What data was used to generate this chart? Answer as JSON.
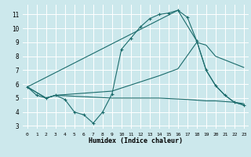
{
  "xlabel": "Humidex (Indice chaleur)",
  "bg_color": "#cce8ec",
  "grid_color": "#ffffff",
  "line_color": "#1a6b6b",
  "xlim": [
    -0.5,
    23.5
  ],
  "ylim": [
    2.8,
    11.7
  ],
  "yticks": [
    3,
    4,
    5,
    6,
    7,
    8,
    9,
    10,
    11
  ],
  "xticks": [
    0,
    1,
    2,
    3,
    4,
    5,
    6,
    7,
    8,
    9,
    10,
    11,
    12,
    13,
    14,
    15,
    16,
    17,
    18,
    19,
    20,
    21,
    22,
    23
  ],
  "line1_x": [
    0,
    1,
    2,
    3,
    4,
    5,
    6,
    7,
    8,
    9,
    10,
    11,
    12,
    13,
    14,
    15,
    16,
    17,
    18,
    19,
    20,
    21,
    22,
    23
  ],
  "line1_y": [
    5.8,
    5.2,
    5.0,
    5.2,
    4.9,
    4.0,
    3.8,
    3.2,
    4.0,
    5.3,
    8.5,
    9.3,
    10.1,
    10.7,
    11.0,
    11.1,
    11.3,
    10.8,
    9.1,
    7.0,
    5.9,
    5.2,
    4.7,
    4.5
  ],
  "line2_x": [
    0,
    2,
    3,
    9,
    14,
    16,
    18,
    19,
    20,
    23
  ],
  "line2_y": [
    5.8,
    5.0,
    5.2,
    5.5,
    6.6,
    7.1,
    9.0,
    8.8,
    8.0,
    7.2
  ],
  "line3_x": [
    0,
    2,
    3,
    9,
    14,
    17,
    19,
    20,
    22,
    23
  ],
  "line3_y": [
    5.8,
    5.0,
    5.2,
    5.0,
    5.0,
    4.9,
    4.8,
    4.8,
    4.7,
    4.6
  ],
  "line4_x": [
    0,
    16,
    18,
    19,
    20,
    21,
    22,
    23
  ],
  "line4_y": [
    5.8,
    11.3,
    9.1,
    7.0,
    5.9,
    5.2,
    4.7,
    4.5
  ]
}
